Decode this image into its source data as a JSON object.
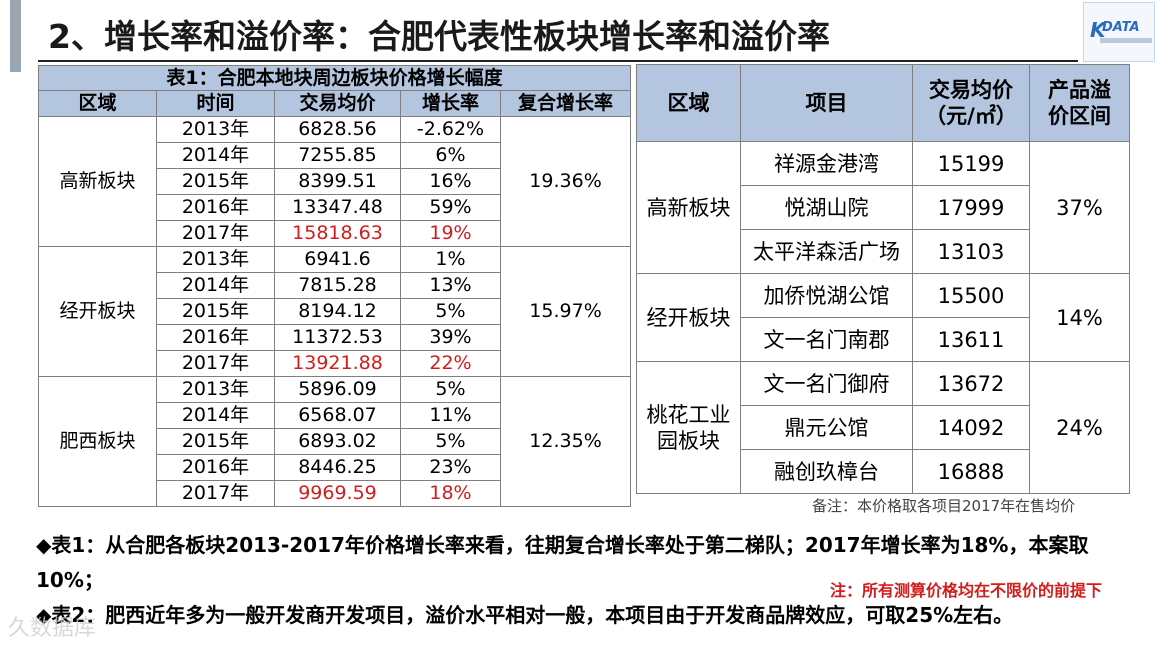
{
  "title": "2、增长率和溢价率：合肥代表性板块增长率和溢价率",
  "logo": {
    "mark": "K",
    "text": "DATA"
  },
  "table1": {
    "caption": "表1：合肥本地块周边板块价格增长幅度",
    "headers": [
      "区域",
      "时间",
      "交易均价",
      "增长率",
      "复合增长率"
    ],
    "groups": [
      {
        "region": "高新板块",
        "compound": "19.36%",
        "rows": [
          {
            "year": "2013年",
            "price": "6828.56",
            "growth": "-2.62%"
          },
          {
            "year": "2014年",
            "price": "7255.85",
            "growth": "6%"
          },
          {
            "year": "2015年",
            "price": "8399.51",
            "growth": "16%"
          },
          {
            "year": "2016年",
            "price": "13347.48",
            "growth": "59%"
          },
          {
            "year": "2017年",
            "price": "15818.63",
            "growth": "19%",
            "highlight": true
          }
        ]
      },
      {
        "region": "经开板块",
        "compound": "15.97%",
        "rows": [
          {
            "year": "2013年",
            "price": "6941.6",
            "growth": "1%"
          },
          {
            "year": "2014年",
            "price": "7815.28",
            "growth": "13%"
          },
          {
            "year": "2015年",
            "price": "8194.12",
            "growth": "5%"
          },
          {
            "year": "2016年",
            "price": "11372.53",
            "growth": "39%"
          },
          {
            "year": "2017年",
            "price": "13921.88",
            "growth": "22%",
            "highlight": true
          }
        ]
      },
      {
        "region": "肥西板块",
        "compound": "12.35%",
        "rows": [
          {
            "year": "2013年",
            "price": "5896.09",
            "growth": "5%"
          },
          {
            "year": "2014年",
            "price": "6568.07",
            "growth": "11%"
          },
          {
            "year": "2015年",
            "price": "6893.02",
            "growth": "5%"
          },
          {
            "year": "2016年",
            "price": "8446.25",
            "growth": "23%"
          },
          {
            "year": "2017年",
            "price": "9969.59",
            "growth": "18%",
            "highlight": true
          }
        ]
      }
    ]
  },
  "table2": {
    "headers": [
      "区域",
      "项目",
      "交易均价（元/㎡）",
      "产品溢价区间"
    ],
    "groups": [
      {
        "region": "高新板块",
        "premium": "37%",
        "rows": [
          {
            "project": "祥源金港湾",
            "price": "15199"
          },
          {
            "project": "悦湖山院",
            "price": "17999"
          },
          {
            "project": "太平洋森活广场",
            "price": "13103"
          }
        ]
      },
      {
        "region": "经开板块",
        "premium": "14%",
        "rows": [
          {
            "project": "加侨悦湖公馆",
            "price": "15500"
          },
          {
            "project": "文一名门南郡",
            "price": "13611"
          }
        ]
      },
      {
        "region": "桃花工业园板块",
        "premium": "24%",
        "rows": [
          {
            "project": "文一名门御府",
            "price": "13672"
          },
          {
            "project": "鼎元公馆",
            "price": "14092"
          },
          {
            "project": "融创玖樟台",
            "price": "16888"
          }
        ]
      }
    ]
  },
  "note": "备注：本价格取各项目2017年在售均价",
  "bullets": [
    "◆表1：从合肥各板块2013-2017年价格增长率来看，往期复合增长率处于第二梯队；2017年增长率为18%，本案取10%；",
    "◆表2：肥西近年多为一般开发商开发项目，溢价水平相对一般，本项目由于开发商品牌效应，可取25%左右。"
  ],
  "red_note": "注：所有测算价格均在不限价的前提下",
  "watermark": "久数据库",
  "colors": {
    "header_bg": "#b4c5e0",
    "highlight": "#d41c1c",
    "side_bar": "#9aa7b3"
  }
}
